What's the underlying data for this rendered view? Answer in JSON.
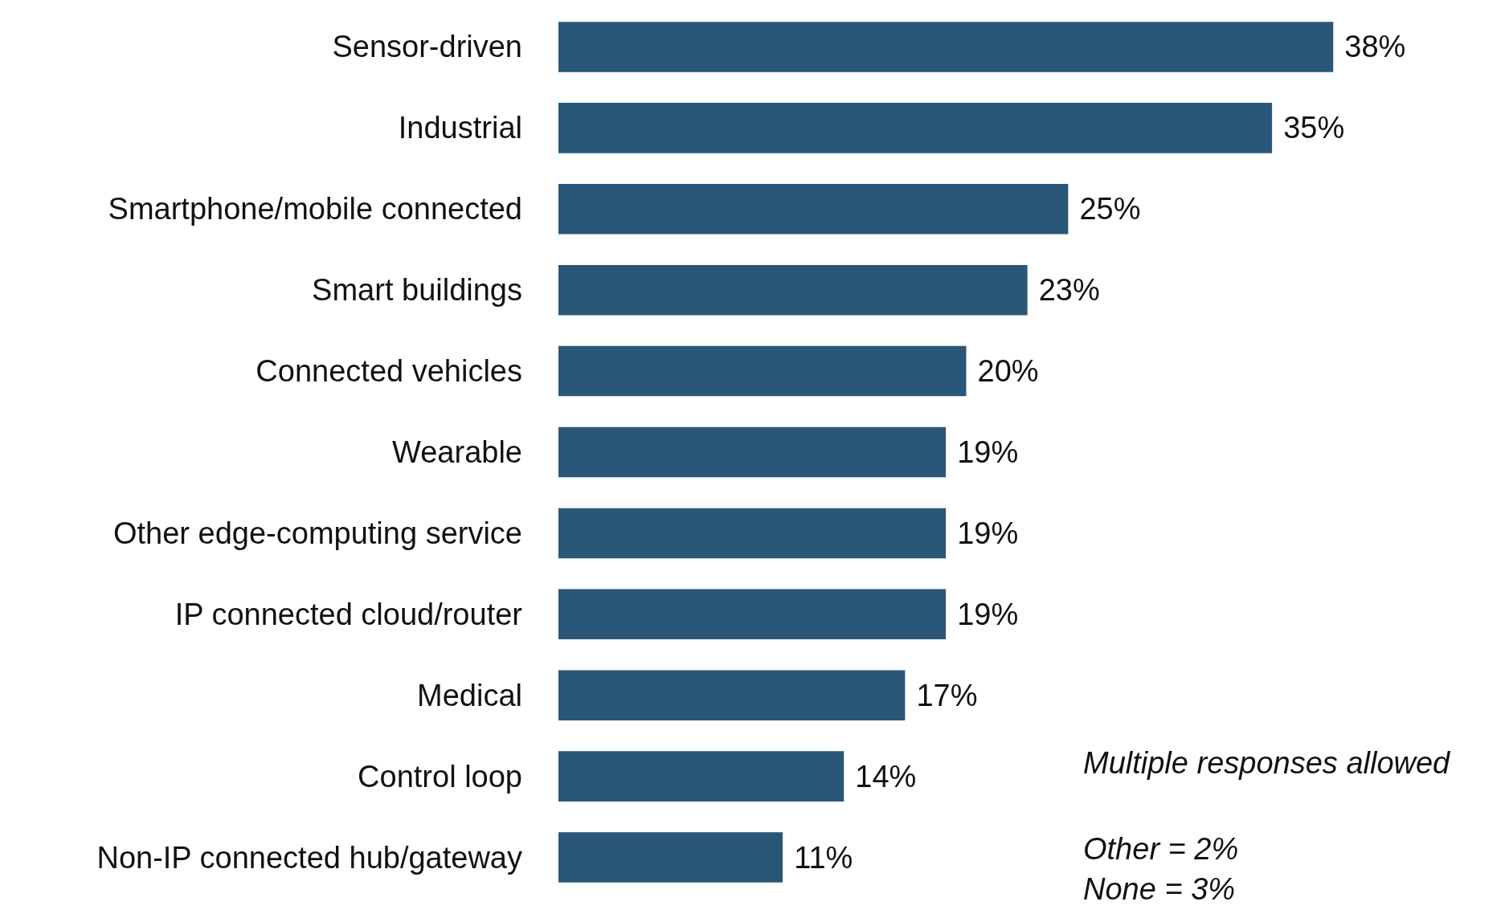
{
  "chart_data": {
    "type": "bar",
    "orientation": "horizontal",
    "categories": [
      "Sensor-driven",
      "Industrial",
      "Smartphone/mobile connected",
      "Smart buildings",
      "Connected vehicles",
      "Wearable",
      "Other edge-computing service",
      "IP connected cloud/router",
      "Medical",
      "Control loop",
      "Non-IP connected hub/gateway"
    ],
    "values": [
      38,
      35,
      25,
      23,
      20,
      19,
      19,
      19,
      17,
      14,
      11
    ],
    "value_labels": [
      "38%",
      "35%",
      "25%",
      "23%",
      "20%",
      "19%",
      "19%",
      "19%",
      "17%",
      "14%",
      "11%"
    ],
    "color": "#2a5777",
    "tick_labels": "y",
    "annotations": [
      "Multiple responses allowed",
      "Other = 2%",
      "None = 3%"
    ]
  }
}
